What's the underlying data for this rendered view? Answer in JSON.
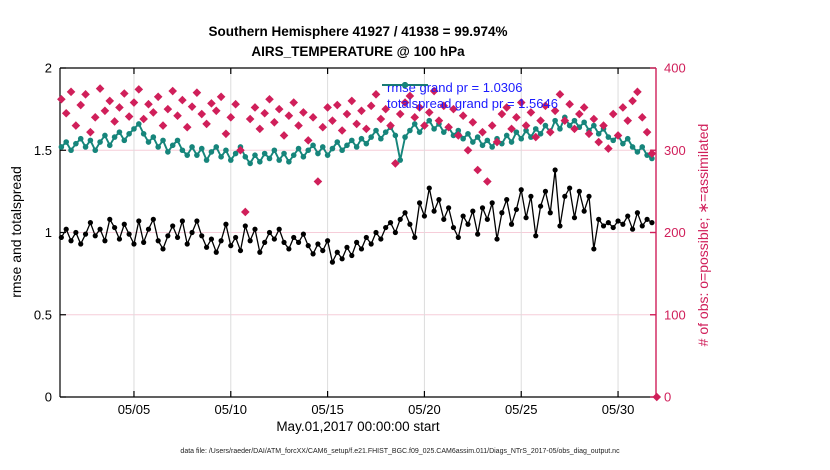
{
  "title": {
    "line1": "Southern Hemisphere 41927 / 41938 = 99.974%",
    "line2": "AIRS_TEMPERATURE @ 100 hPa"
  },
  "axes": {
    "left_label": "rmse and totalspread",
    "right_label": "# of obs: o=possible; ∗=assimilated",
    "x_label": "May.01,2017 00:00:00 start",
    "left_ticks": [
      "0",
      "0.5",
      "1",
      "1.5",
      "2"
    ],
    "left_tick_values": [
      0,
      0.5,
      1,
      1.5,
      2
    ],
    "right_ticks": [
      "0",
      "100",
      "200",
      "300",
      "400"
    ],
    "right_tick_values": [
      0,
      100,
      200,
      300,
      400
    ],
    "x_ticks": [
      "05/05",
      "05/10",
      "05/15",
      "05/20",
      "05/25",
      "05/30"
    ],
    "x_tick_values": [
      5,
      10,
      15,
      20,
      25,
      30
    ]
  },
  "legend": {
    "rmse_label": "rmse grand pr = 1.0306",
    "totalspread_label": "totalspread grand pr = 1.5646"
  },
  "footer": "data file: /Users/raeder/DAI/ATM_forcXX/CAM6_setup/f.e21.FHIST_BGC.f09_025.CAM6assim.011/Diags_NTrS_2017-05/obs_diag_output.nc",
  "colors": {
    "rmse": "#000000",
    "totalspread": "#16857b",
    "obs": "#d01f5a",
    "legend_text": "#1a1aff",
    "grid_h": "#f6cdd9",
    "grid_v": "#dcdcdc",
    "frame": "#000000"
  },
  "chart_data": {
    "type": "line",
    "title": "Southern Hemisphere 41927 / 41938 = 99.974% | AIRS_TEMPERATURE @ 100 hPa",
    "xlabel": "May.01,2017 00:00:00 start",
    "ylabel_left": "rmse and totalspread",
    "ylabel_right": "# of obs: o=possible; ∗=assimilated",
    "xlim_days": [
      1.18,
      31.96
    ],
    "ylim_left": [
      0,
      2
    ],
    "ylim_right": [
      0,
      400
    ],
    "grid": true,
    "legend_position": "top-center-inside",
    "series": [
      {
        "name": "rmse",
        "axis": "left",
        "marker": "circle",
        "color_key": "rmse",
        "grand_mean": 1.0306,
        "x_days": {
          "start": 1.25,
          "step": 0.25,
          "count": 123
        },
        "values": [
          0.97,
          1.02,
          0.95,
          1.0,
          0.93,
          0.99,
          1.06,
          0.98,
          1.02,
          0.95,
          1.08,
          1.03,
          0.96,
          1.05,
          0.99,
          0.93,
          1.07,
          0.94,
          1.02,
          1.08,
          0.95,
          0.9,
          0.98,
          1.04,
          0.97,
          1.07,
          0.93,
          1.0,
          1.07,
          0.98,
          0.91,
          0.96,
          0.88,
          0.95,
          1.05,
          0.92,
          0.97,
          0.89,
          1.04,
          0.95,
          1.02,
          0.88,
          0.94,
          1.0,
          0.96,
          1.02,
          0.94,
          0.9,
          0.97,
          0.94,
          0.99,
          0.92,
          0.87,
          0.93,
          0.89,
          0.95,
          0.82,
          0.88,
          0.84,
          0.91,
          0.86,
          0.94,
          0.9,
          0.97,
          0.93,
          1.0,
          0.96,
          1.03,
          1.06,
          1.0,
          1.08,
          1.12,
          1.05,
          0.97,
          1.18,
          1.1,
          1.27,
          1.13,
          1.2,
          1.08,
          1.15,
          1.03,
          0.97,
          1.1,
          1.05,
          1.13,
          0.99,
          1.15,
          1.08,
          1.18,
          0.96,
          1.12,
          1.2,
          1.05,
          1.14,
          1.26,
          1.09,
          1.22,
          0.98,
          1.16,
          1.25,
          1.12,
          1.38,
          1.04,
          1.22,
          1.27,
          1.09,
          1.25,
          1.13,
          1.22,
          0.9,
          1.08,
          1.04,
          1.06,
          1.03,
          1.07,
          1.05,
          1.1,
          1.02,
          1.12,
          1.04,
          1.08,
          1.06
        ]
      },
      {
        "name": "totalspread",
        "axis": "left",
        "marker": "circle",
        "color_key": "totalspread",
        "grand_mean": 1.5646,
        "x_days": {
          "start": 1.25,
          "step": 0.25,
          "count": 123
        },
        "values": [
          1.52,
          1.55,
          1.5,
          1.54,
          1.57,
          1.52,
          1.56,
          1.5,
          1.55,
          1.59,
          1.53,
          1.58,
          1.61,
          1.56,
          1.6,
          1.63,
          1.66,
          1.6,
          1.55,
          1.58,
          1.52,
          1.56,
          1.49,
          1.53,
          1.56,
          1.5,
          1.47,
          1.52,
          1.47,
          1.51,
          1.44,
          1.49,
          1.52,
          1.46,
          1.5,
          1.44,
          1.48,
          1.52,
          1.46,
          1.42,
          1.47,
          1.43,
          1.48,
          1.45,
          1.5,
          1.44,
          1.48,
          1.43,
          1.47,
          1.51,
          1.46,
          1.5,
          1.53,
          1.48,
          1.52,
          1.47,
          1.51,
          1.55,
          1.5,
          1.53,
          1.56,
          1.52,
          1.57,
          1.54,
          1.58,
          1.62,
          1.57,
          1.61,
          1.64,
          1.59,
          1.44,
          1.58,
          1.62,
          1.66,
          1.61,
          1.65,
          1.68,
          1.63,
          1.66,
          1.61,
          1.64,
          1.59,
          1.62,
          1.57,
          1.6,
          1.55,
          1.58,
          1.53,
          1.56,
          1.52,
          1.57,
          1.54,
          1.59,
          1.55,
          1.61,
          1.57,
          1.62,
          1.58,
          1.63,
          1.6,
          1.65,
          1.61,
          1.68,
          1.63,
          1.7,
          1.65,
          1.68,
          1.64,
          1.67,
          1.62,
          1.65,
          1.6,
          1.63,
          1.58,
          1.56,
          1.59,
          1.54,
          1.57,
          1.52,
          1.49,
          1.52,
          1.47,
          1.45
        ]
      },
      {
        "name": "n_obs",
        "axis": "right",
        "marker": "diamond",
        "color_key": "obs",
        "x_days": {
          "start": 1.25,
          "step": 0.25,
          "count": 124
        },
        "values": [
          362,
          345,
          371,
          330,
          355,
          368,
          322,
          340,
          375,
          348,
          360,
          335,
          352,
          369,
          341,
          358,
          374,
          338,
          356,
          346,
          365,
          330,
          350,
          372,
          342,
          361,
          328,
          353,
          370,
          344,
          332,
          357,
          348,
          365,
          320,
          340,
          356,
          300,
          225,
          338,
          352,
          326,
          345,
          362,
          334,
          350,
          318,
          342,
          358,
          330,
          346,
          312,
          340,
          262,
          328,
          352,
          336,
          355,
          324,
          344,
          360,
          332,
          348,
          326,
          354,
          368,
          338,
          350,
          330,
          284,
          344,
          358,
          366,
          340,
          352,
          330,
          346,
          372,
          336,
          354,
          328,
          350,
          318,
          342,
          300,
          334,
          276,
          322,
          262,
          330,
          310,
          344,
          352,
          326,
          340,
          358,
          330,
          346,
          316,
          336,
          354,
          322,
          348,
          368,
          336,
          356,
          326,
          344,
          352,
          320,
          338,
          310,
          330,
          302,
          344,
          318,
          352,
          336,
          360,
          371,
          340,
          322,
          296,
          0
        ]
      }
    ]
  }
}
